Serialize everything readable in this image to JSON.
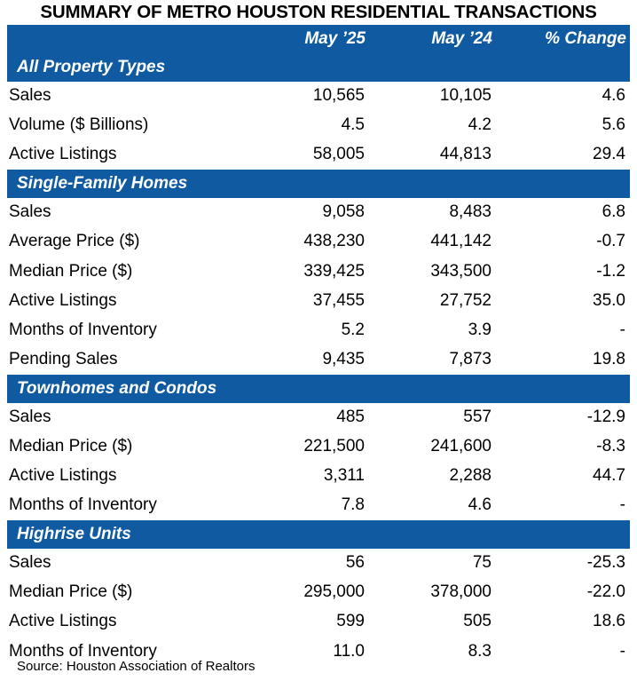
{
  "title": "SUMMARY OF METRO HOUSTON RESIDENTIAL TRANSACTIONS",
  "columns": [
    "",
    "May ’25",
    "May ’24",
    "% Change"
  ],
  "sections": [
    {
      "name": "All Property Types",
      "rows": [
        {
          "label": "Sales",
          "may25": "10,565",
          "may24": "10,105",
          "change": "4.6"
        },
        {
          "label": "Volume ($ Billions)",
          "may25": "4.5",
          "may24": "4.2",
          "change": "5.6"
        },
        {
          "label": "Active Listings",
          "may25": "58,005",
          "may24": "44,813",
          "change": "29.4"
        }
      ]
    },
    {
      "name": "Single-Family Homes",
      "rows": [
        {
          "label": "Sales",
          "may25": "9,058",
          "may24": "8,483",
          "change": "6.8"
        },
        {
          "label": "Average Price ($)",
          "may25": "438,230",
          "may24": "441,142",
          "change": "-0.7"
        },
        {
          "label": "Median Price ($)",
          "may25": "339,425",
          "may24": "343,500",
          "change": "-1.2"
        },
        {
          "label": "Active Listings",
          "may25": "37,455",
          "may24": "27,752",
          "change": "35.0"
        },
        {
          "label": "Months of Inventory",
          "may25": "5.2",
          "may24": "3.9",
          "change": "-"
        },
        {
          "label": "Pending Sales",
          "may25": "9,435",
          "may24": "7,873",
          "change": "19.8"
        }
      ]
    },
    {
      "name": "Townhomes and Condos",
      "rows": [
        {
          "label": "Sales",
          "may25": "485",
          "may24": "557",
          "change": "-12.9"
        },
        {
          "label": "Median Price ($)",
          "may25": "221,500",
          "may24": "241,600",
          "change": "-8.3"
        },
        {
          "label": "Active Listings",
          "may25": "3,311",
          "may24": "2,288",
          "change": "44.7"
        },
        {
          "label": "Months of Inventory",
          "may25": "7.8",
          "may24": "4.6",
          "change": "-"
        }
      ]
    },
    {
      "name": "Highrise Units",
      "rows": [
        {
          "label": "Sales",
          "may25": "56",
          "may24": "75",
          "change": "-25.3"
        },
        {
          "label": "Median Price ($)",
          "may25": "295,000",
          "may24": "378,000",
          "change": "-22.0"
        },
        {
          "label": "Active Listings",
          "may25": "599",
          "may24": "505",
          "change": "18.6"
        },
        {
          "label": "Months of Inventory",
          "may25": "11.0",
          "may24": "8.3",
          "change": "-"
        }
      ]
    }
  ],
  "source": "Source: Houston Association of Realtors",
  "colors": {
    "header_bg": "#0f5aa0",
    "header_text": "#ffffff"
  }
}
